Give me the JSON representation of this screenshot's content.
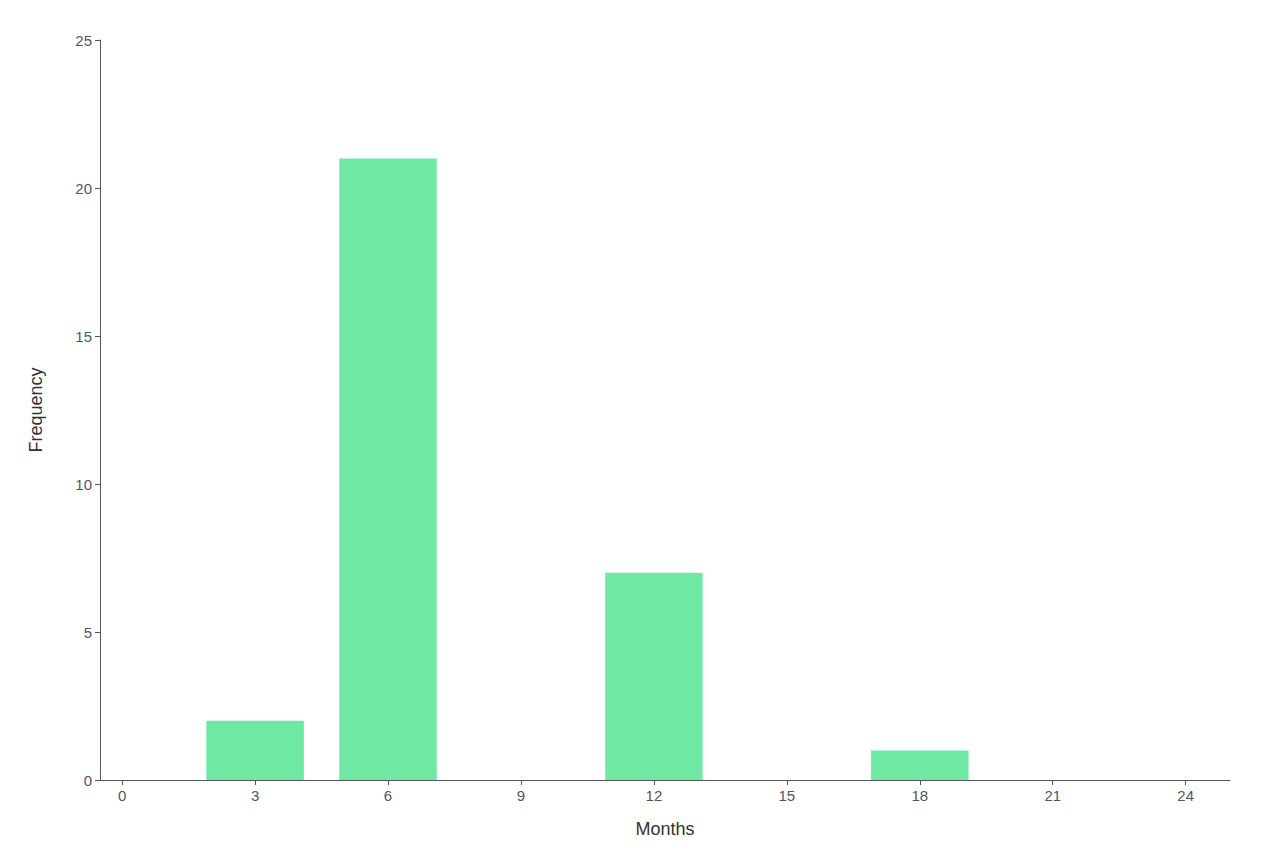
{
  "chart_data": {
    "type": "bar",
    "x": [
      3,
      6,
      12,
      18
    ],
    "values": [
      2,
      21,
      7,
      1
    ],
    "color": "#6EE8A2",
    "xlabel": "Months",
    "ylabel": "Frequency",
    "xlim": [
      -0.5,
      25
    ],
    "xticks": [
      0,
      3,
      6,
      9,
      12,
      15,
      18,
      21,
      24
    ],
    "ylim": [
      0,
      25
    ],
    "yticks": [
      0,
      5,
      10,
      15,
      20,
      25
    ],
    "grid": false
  }
}
